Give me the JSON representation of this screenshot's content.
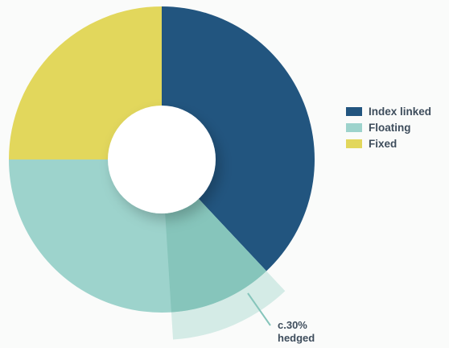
{
  "chart_data": {
    "type": "donut",
    "title": "",
    "series": [
      {
        "name": "Index linked",
        "value": 38,
        "color": "#22557f"
      },
      {
        "name": "Floating",
        "value": 37,
        "color": "#9dd3cc"
      },
      {
        "name": "Fixed",
        "value": 25,
        "color": "#e2d75c"
      }
    ],
    "sub_segment": {
      "series": "Floating",
      "value": 11,
      "color": "#86c5bb",
      "extension_color": "#d4ebe6",
      "description_lines": [
        "c.30%",
        "hedged"
      ]
    }
  }
}
